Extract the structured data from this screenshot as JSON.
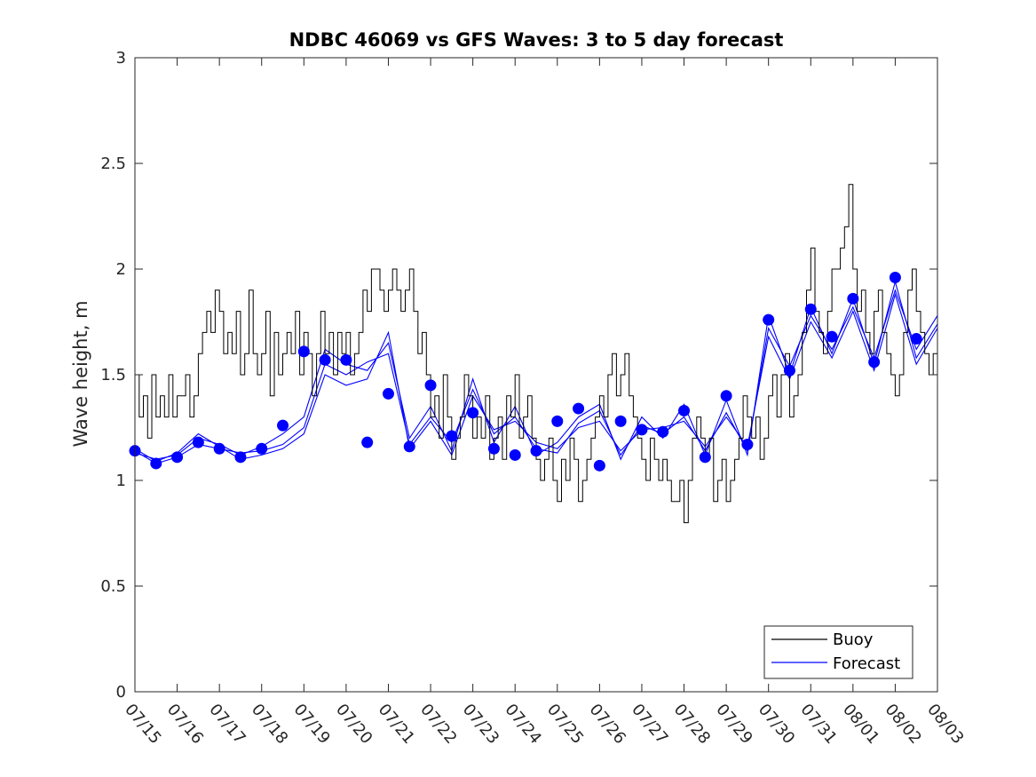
{
  "chart_data": {
    "type": "line",
    "title": "NDBC 46069 vs GFS Waves: 3 to 5 day forecast",
    "xlabel": "",
    "ylabel": "Wave height, m",
    "ylim": [
      0,
      3
    ],
    "xlim": [
      "07/15",
      "08/03"
    ],
    "x_tick_labels": [
      "07/15",
      "07/16",
      "07/17",
      "07/18",
      "07/19",
      "07/20",
      "07/21",
      "07/22",
      "07/23",
      "07/24",
      "07/25",
      "07/26",
      "07/27",
      "07/28",
      "07/29",
      "07/30",
      "07/31",
      "08/01",
      "08/02",
      "08/03"
    ],
    "y_tick_labels": [
      "0",
      "0.5",
      "1",
      "1.5",
      "2",
      "2.5",
      "3"
    ],
    "y_ticks": [
      0,
      0.5,
      1,
      1.5,
      2,
      2.5,
      3
    ],
    "grid": false,
    "legend_position": "bottom-right",
    "colors": {
      "buoy": "#000000",
      "forecast": "#0000ff"
    },
    "series": [
      {
        "name": "Buoy",
        "x_days": [
          0,
          0.1,
          0.2,
          0.3,
          0.4,
          0.5,
          0.6,
          0.7,
          0.8,
          0.9,
          1.0,
          1.1,
          1.2,
          1.3,
          1.4,
          1.5,
          1.6,
          1.7,
          1.8,
          1.9,
          2.0,
          2.1,
          2.2,
          2.3,
          2.4,
          2.5,
          2.6,
          2.7,
          2.8,
          2.9,
          3.0,
          3.1,
          3.2,
          3.3,
          3.4,
          3.5,
          3.6,
          3.7,
          3.8,
          3.9,
          4.0,
          4.1,
          4.2,
          4.3,
          4.4,
          4.5,
          4.6,
          4.7,
          4.8,
          4.9,
          5.0,
          5.1,
          5.2,
          5.3,
          5.4,
          5.5,
          5.6,
          5.7,
          5.8,
          5.9,
          6.0,
          6.1,
          6.2,
          6.3,
          6.4,
          6.5,
          6.6,
          6.7,
          6.8,
          6.9,
          7.0,
          7.1,
          7.2,
          7.3,
          7.4,
          7.5,
          7.6,
          7.7,
          7.8,
          7.9,
          8.0,
          8.1,
          8.2,
          8.3,
          8.4,
          8.5,
          8.6,
          8.7,
          8.8,
          8.9,
          9.0,
          9.1,
          9.2,
          9.3,
          9.4,
          9.5,
          9.6,
          9.7,
          9.8,
          9.9,
          10.0,
          10.1,
          10.2,
          10.3,
          10.4,
          10.5,
          10.6,
          10.7,
          10.8,
          10.9,
          11.0,
          11.1,
          11.2,
          11.3,
          11.4,
          11.5,
          11.6,
          11.7,
          11.8,
          11.9,
          12.0,
          12.1,
          12.2,
          12.3,
          12.4,
          12.5,
          12.6,
          12.7,
          12.8,
          12.9,
          13.0,
          13.1,
          13.2,
          13.3,
          13.4,
          13.5,
          13.6,
          13.7,
          13.8,
          13.9,
          14.0,
          14.1,
          14.2,
          14.3,
          14.4,
          14.5,
          14.6,
          14.7,
          14.8,
          14.9,
          15.0,
          15.1,
          15.2,
          15.3,
          15.4,
          15.5,
          15.6,
          15.7,
          15.8,
          15.9,
          16.0,
          16.1,
          16.2,
          16.3,
          16.4,
          16.5,
          16.6,
          16.7,
          16.8,
          16.9,
          17.0,
          17.1,
          17.2,
          17.3,
          17.4,
          17.5,
          17.6,
          17.7,
          17.8,
          17.9,
          18.0,
          18.1,
          18.2,
          18.3,
          18.4,
          18.5,
          18.6,
          18.7,
          18.8,
          18.9,
          19.0
        ],
        "values": [
          1.5,
          1.3,
          1.4,
          1.2,
          1.5,
          1.3,
          1.4,
          1.3,
          1.5,
          1.3,
          1.4,
          1.4,
          1.5,
          1.3,
          1.4,
          1.6,
          1.7,
          1.8,
          1.7,
          1.9,
          1.8,
          1.6,
          1.7,
          1.6,
          1.8,
          1.5,
          1.6,
          1.9,
          1.6,
          1.5,
          1.6,
          1.8,
          1.4,
          1.7,
          1.5,
          1.6,
          1.7,
          1.6,
          1.8,
          1.5,
          1.7,
          1.6,
          1.4,
          1.6,
          1.8,
          1.6,
          1.7,
          1.5,
          1.7,
          1.6,
          1.7,
          1.5,
          1.6,
          1.7,
          1.9,
          1.8,
          2.0,
          2.0,
          1.9,
          1.8,
          1.9,
          2.0,
          1.9,
          1.8,
          1.9,
          2.0,
          1.8,
          1.6,
          1.7,
          1.5,
          1.3,
          1.4,
          1.2,
          1.5,
          1.3,
          1.1,
          1.2,
          1.3,
          1.5,
          1.4,
          1.2,
          1.3,
          1.2,
          1.4,
          1.1,
          1.2,
          1.3,
          1.1,
          1.4,
          1.3,
          1.5,
          1.2,
          1.3,
          1.4,
          1.2,
          1.1,
          1.0,
          1.1,
          1.2,
          1.0,
          0.9,
          1.1,
          1.0,
          1.2,
          1.1,
          0.9,
          1.0,
          1.1,
          1.2,
          1.3,
          1.4,
          1.3,
          1.5,
          1.6,
          1.4,
          1.5,
          1.6,
          1.4,
          1.3,
          1.2,
          1.1,
          1.0,
          1.2,
          1.1,
          1.0,
          1.1,
          1.0,
          0.9,
          0.9,
          1.0,
          0.8,
          1.0,
          1.2,
          1.3,
          1.2,
          1.1,
          1.2,
          0.9,
          1.0,
          1.1,
          0.9,
          1.0,
          1.1,
          1.2,
          1.4,
          1.3,
          1.2,
          1.3,
          1.1,
          1.2,
          1.4,
          1.5,
          1.3,
          1.5,
          1.6,
          1.3,
          1.4,
          1.5,
          1.7,
          1.9,
          2.1,
          1.8,
          1.7,
          1.6,
          1.8,
          2.0,
          2.0,
          2.1,
          2.2,
          2.4,
          2.0,
          1.8,
          1.9,
          1.7,
          1.6,
          1.8,
          1.9,
          1.7,
          1.6,
          1.5,
          1.4,
          1.5,
          1.7,
          1.9,
          2.0,
          1.8,
          1.7,
          1.6,
          1.5,
          1.6,
          1.7
        ]
      },
      {
        "name": "Forecast",
        "runs": [
          {
            "x_days": [
              0,
              0.5,
              1.0,
              1.5,
              2.0,
              2.5,
              3.0,
              3.5,
              4.0,
              4.5,
              5.0,
              5.5,
              6.0,
              6.5,
              7.0,
              7.5,
              8.0,
              8.5,
              9.0,
              9.5,
              10.0,
              10.5,
              11.0,
              11.5,
              12.0,
              12.5,
              13.0,
              13.5,
              14.0,
              14.5,
              15.0,
              15.5,
              16.0,
              16.5,
              17.0,
              17.5,
              18.0,
              18.5,
              19.0
            ],
            "values": [
              1.14,
              1.08,
              1.11,
              1.17,
              1.15,
              1.13,
              1.14,
              1.17,
              1.25,
              1.55,
              1.5,
              1.56,
              1.6,
              1.17,
              1.3,
              1.18,
              1.43,
              1.22,
              1.3,
              1.15,
              1.13,
              1.27,
              1.33,
              1.12,
              1.26,
              1.22,
              1.3,
              1.14,
              1.32,
              1.14,
              1.72,
              1.54,
              1.78,
              1.62,
              1.82,
              1.58,
              1.9,
              1.62,
              1.78
            ]
          },
          {
            "x_days": [
              0,
              0.5,
              1.0,
              1.5,
              2.0,
              2.5,
              3.0,
              3.5,
              4.0,
              4.5,
              5.0,
              5.5,
              6.0,
              6.5,
              7.0,
              7.5,
              8.0,
              8.5,
              9.0,
              9.5,
              10.0,
              10.5,
              11.0,
              11.5,
              12.0,
              12.5,
              13.0,
              13.5,
              14.0,
              14.5,
              15.0,
              15.5,
              16.0,
              16.5,
              17.0,
              17.5,
              18.0,
              18.5,
              19.0
            ],
            "values": [
              1.13,
              1.1,
              1.12,
              1.2,
              1.17,
              1.12,
              1.16,
              1.22,
              1.3,
              1.62,
              1.55,
              1.52,
              1.65,
              1.2,
              1.35,
              1.14,
              1.48,
              1.18,
              1.35,
              1.12,
              1.18,
              1.3,
              1.36,
              1.1,
              1.3,
              1.2,
              1.36,
              1.12,
              1.38,
              1.12,
              1.78,
              1.5,
              1.82,
              1.6,
              1.86,
              1.55,
              1.94,
              1.58,
              1.74
            ]
          },
          {
            "x_days": [
              0,
              0.5,
              1.0,
              1.5,
              2.0,
              2.5,
              3.0,
              3.5,
              4.0,
              4.5,
              5.0,
              5.5,
              6.0,
              6.5,
              7.0,
              7.5,
              8.0,
              8.5,
              9.0,
              9.5,
              10.0,
              10.5,
              11.0,
              11.5,
              12.0,
              12.5,
              13.0,
              13.5,
              14.0,
              14.5,
              15.0,
              15.5,
              16.0,
              16.5,
              17.0,
              17.5,
              18.0,
              18.5,
              19.0
            ],
            "values": [
              1.15,
              1.09,
              1.13,
              1.22,
              1.16,
              1.1,
              1.12,
              1.15,
              1.22,
              1.5,
              1.45,
              1.48,
              1.7,
              1.15,
              1.28,
              1.12,
              1.4,
              1.24,
              1.28,
              1.18,
              1.15,
              1.25,
              1.28,
              1.14,
              1.24,
              1.25,
              1.28,
              1.16,
              1.3,
              1.16,
              1.68,
              1.48,
              1.75,
              1.58,
              1.8,
              1.52,
              1.88,
              1.55,
              1.72
            ]
          }
        ]
      }
    ],
    "forecast_markers": {
      "x_days": [
        0,
        0.5,
        1.0,
        1.5,
        2.0,
        2.5,
        3.0,
        3.5,
        4.0,
        4.5,
        5.0,
        5.5,
        6.0,
        6.5,
        7.0,
        7.5,
        8.0,
        8.5,
        9.0,
        9.5,
        10.0,
        10.5,
        11.0,
        11.5,
        12.0,
        12.5,
        13.0,
        13.5,
        14.0,
        14.5,
        15.0,
        15.5,
        16.0,
        16.5,
        17.0,
        17.5,
        18.0,
        18.5
      ],
      "values": [
        1.14,
        1.08,
        1.11,
        1.18,
        1.15,
        1.11,
        1.15,
        1.26,
        1.61,
        1.57,
        1.57,
        1.18,
        1.41,
        1.16,
        1.45,
        1.21,
        1.32,
        1.15,
        1.12,
        1.14,
        1.28,
        1.34,
        1.07,
        1.28,
        1.24,
        1.23,
        1.33,
        1.11,
        1.4,
        1.17,
        1.76,
        1.52,
        1.81,
        1.68,
        1.86,
        1.56,
        1.96,
        1.67
      ]
    },
    "legend": [
      "Buoy",
      "Forecast"
    ]
  }
}
